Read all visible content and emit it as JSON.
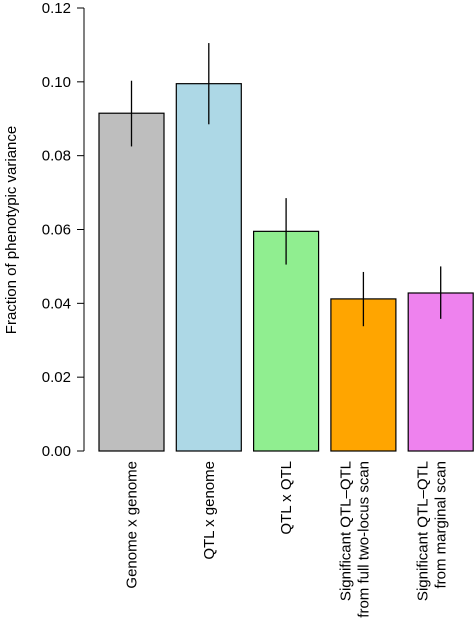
{
  "chart_data": {
    "type": "bar",
    "title": "",
    "xlabel": "",
    "ylabel": "Fraction of phenotypic variance",
    "ylim": [
      0,
      0.12
    ],
    "yticks": [
      "0.00",
      "0.02",
      "0.04",
      "0.06",
      "0.08",
      "0.10",
      "0.12"
    ],
    "grid": false,
    "categories": [
      [
        "Genome x genome"
      ],
      [
        "QTL x genome"
      ],
      [
        "QTL x QTL"
      ],
      [
        "Significant QTL–QTL",
        "from full two-locus scan"
      ],
      [
        "Significant QTL–QTL",
        "from marginal scan"
      ]
    ],
    "values": [
      0.0915,
      0.0995,
      0.0595,
      0.0412,
      0.0428
    ],
    "error_low": [
      0.0825,
      0.0885,
      0.0505,
      0.0338,
      0.0358
    ],
    "error_high": [
      0.1003,
      0.1105,
      0.0685,
      0.0485,
      0.05
    ],
    "colors": [
      "#bebebe",
      "#add8e6",
      "#90ee90",
      "#ffa500",
      "#ee82ee"
    ]
  }
}
